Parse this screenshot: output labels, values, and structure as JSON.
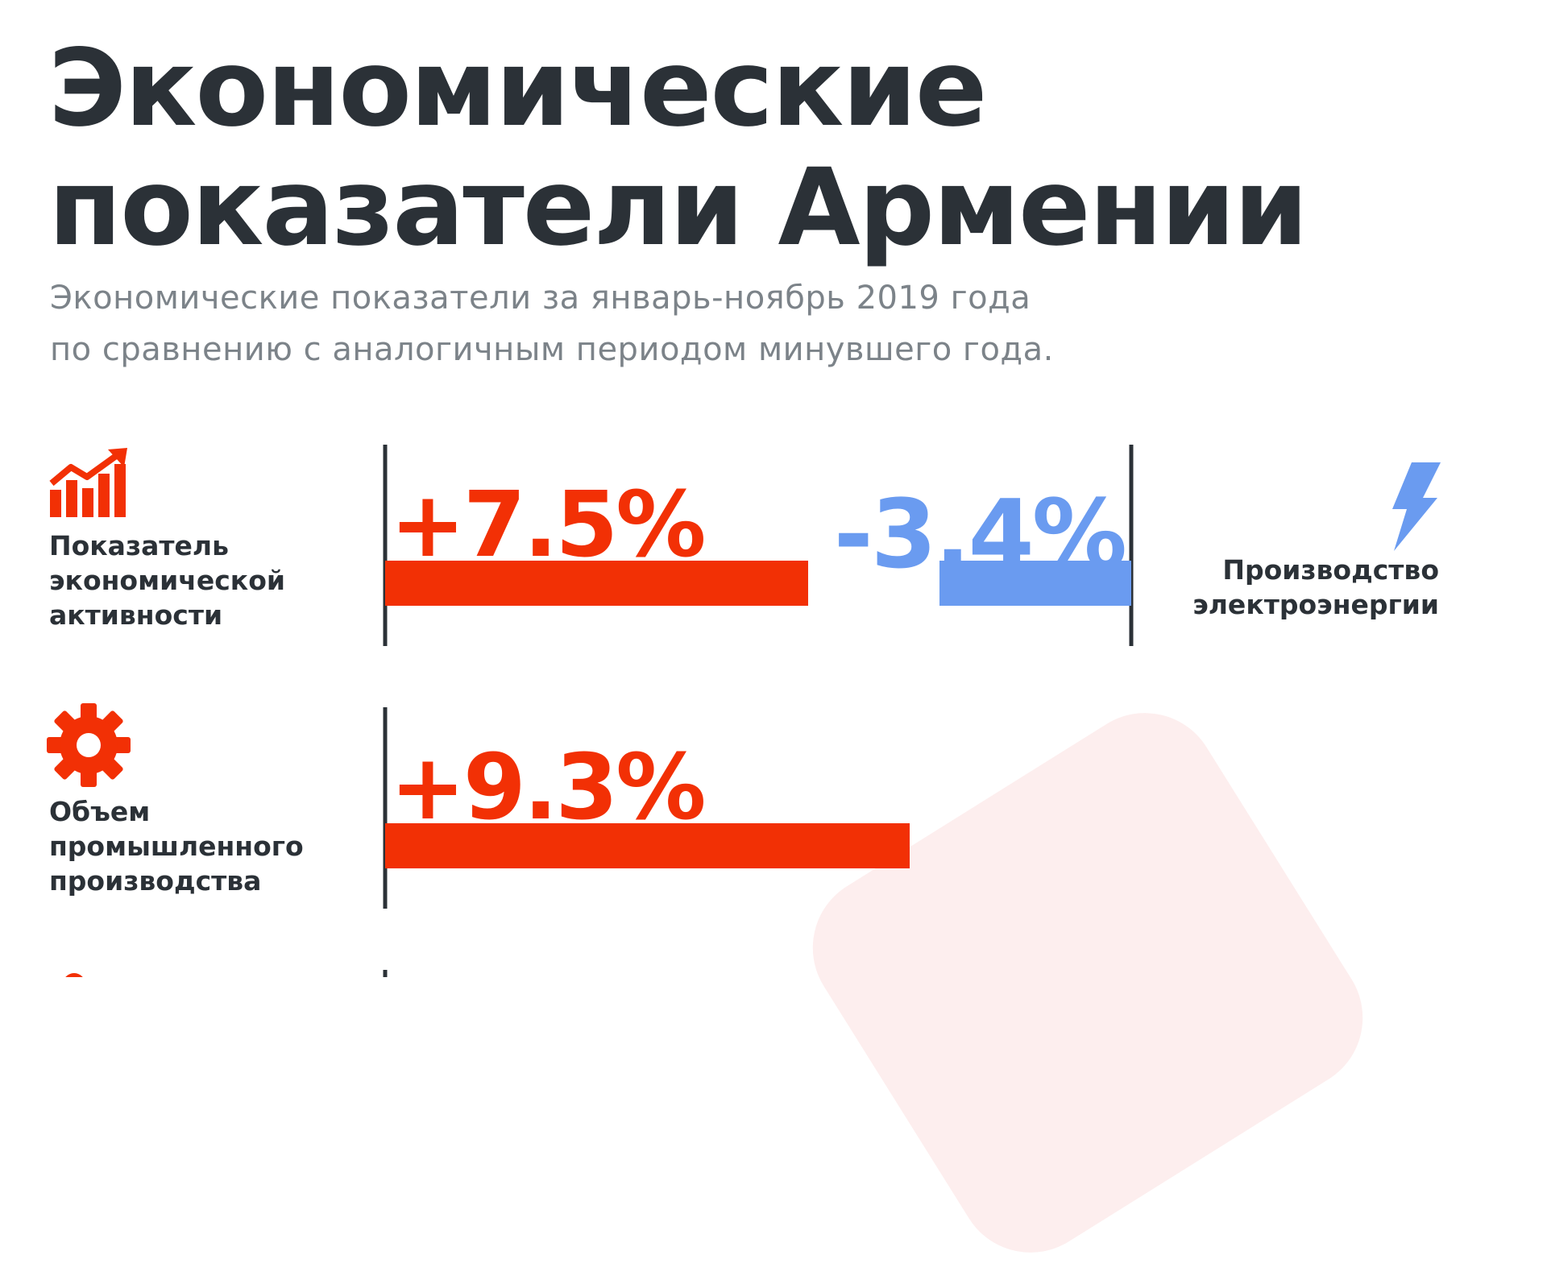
{
  "title": "Экономические\nпоказатели Армении",
  "subtitle": "Экономические показатели за январь-ноябрь 2019 года\nпо сравнению с аналогичным периодом минувшего года.",
  "colors": {
    "positive": "#f23005",
    "negative": "#6a9bf0",
    "text": "#2b3137",
    "subtitle": "#7c8389",
    "background_shape": "#fdeeee"
  },
  "chart_data": {
    "type": "bar",
    "rows": [
      {
        "category": "Показатель\nэкономической\nактивности",
        "icon": "growth-chart-icon",
        "value": 7.5,
        "label": "+7.5%"
      },
      {
        "category": "Производство\nэлектроэнергии",
        "icon": "lightning-icon",
        "value": -3.4,
        "label": "-3.4%"
      },
      {
        "category": "Объем\nпромышленного\nпроизводства",
        "icon": "gear-icon",
        "value": 9.3,
        "label": "+9.3%"
      }
    ]
  }
}
